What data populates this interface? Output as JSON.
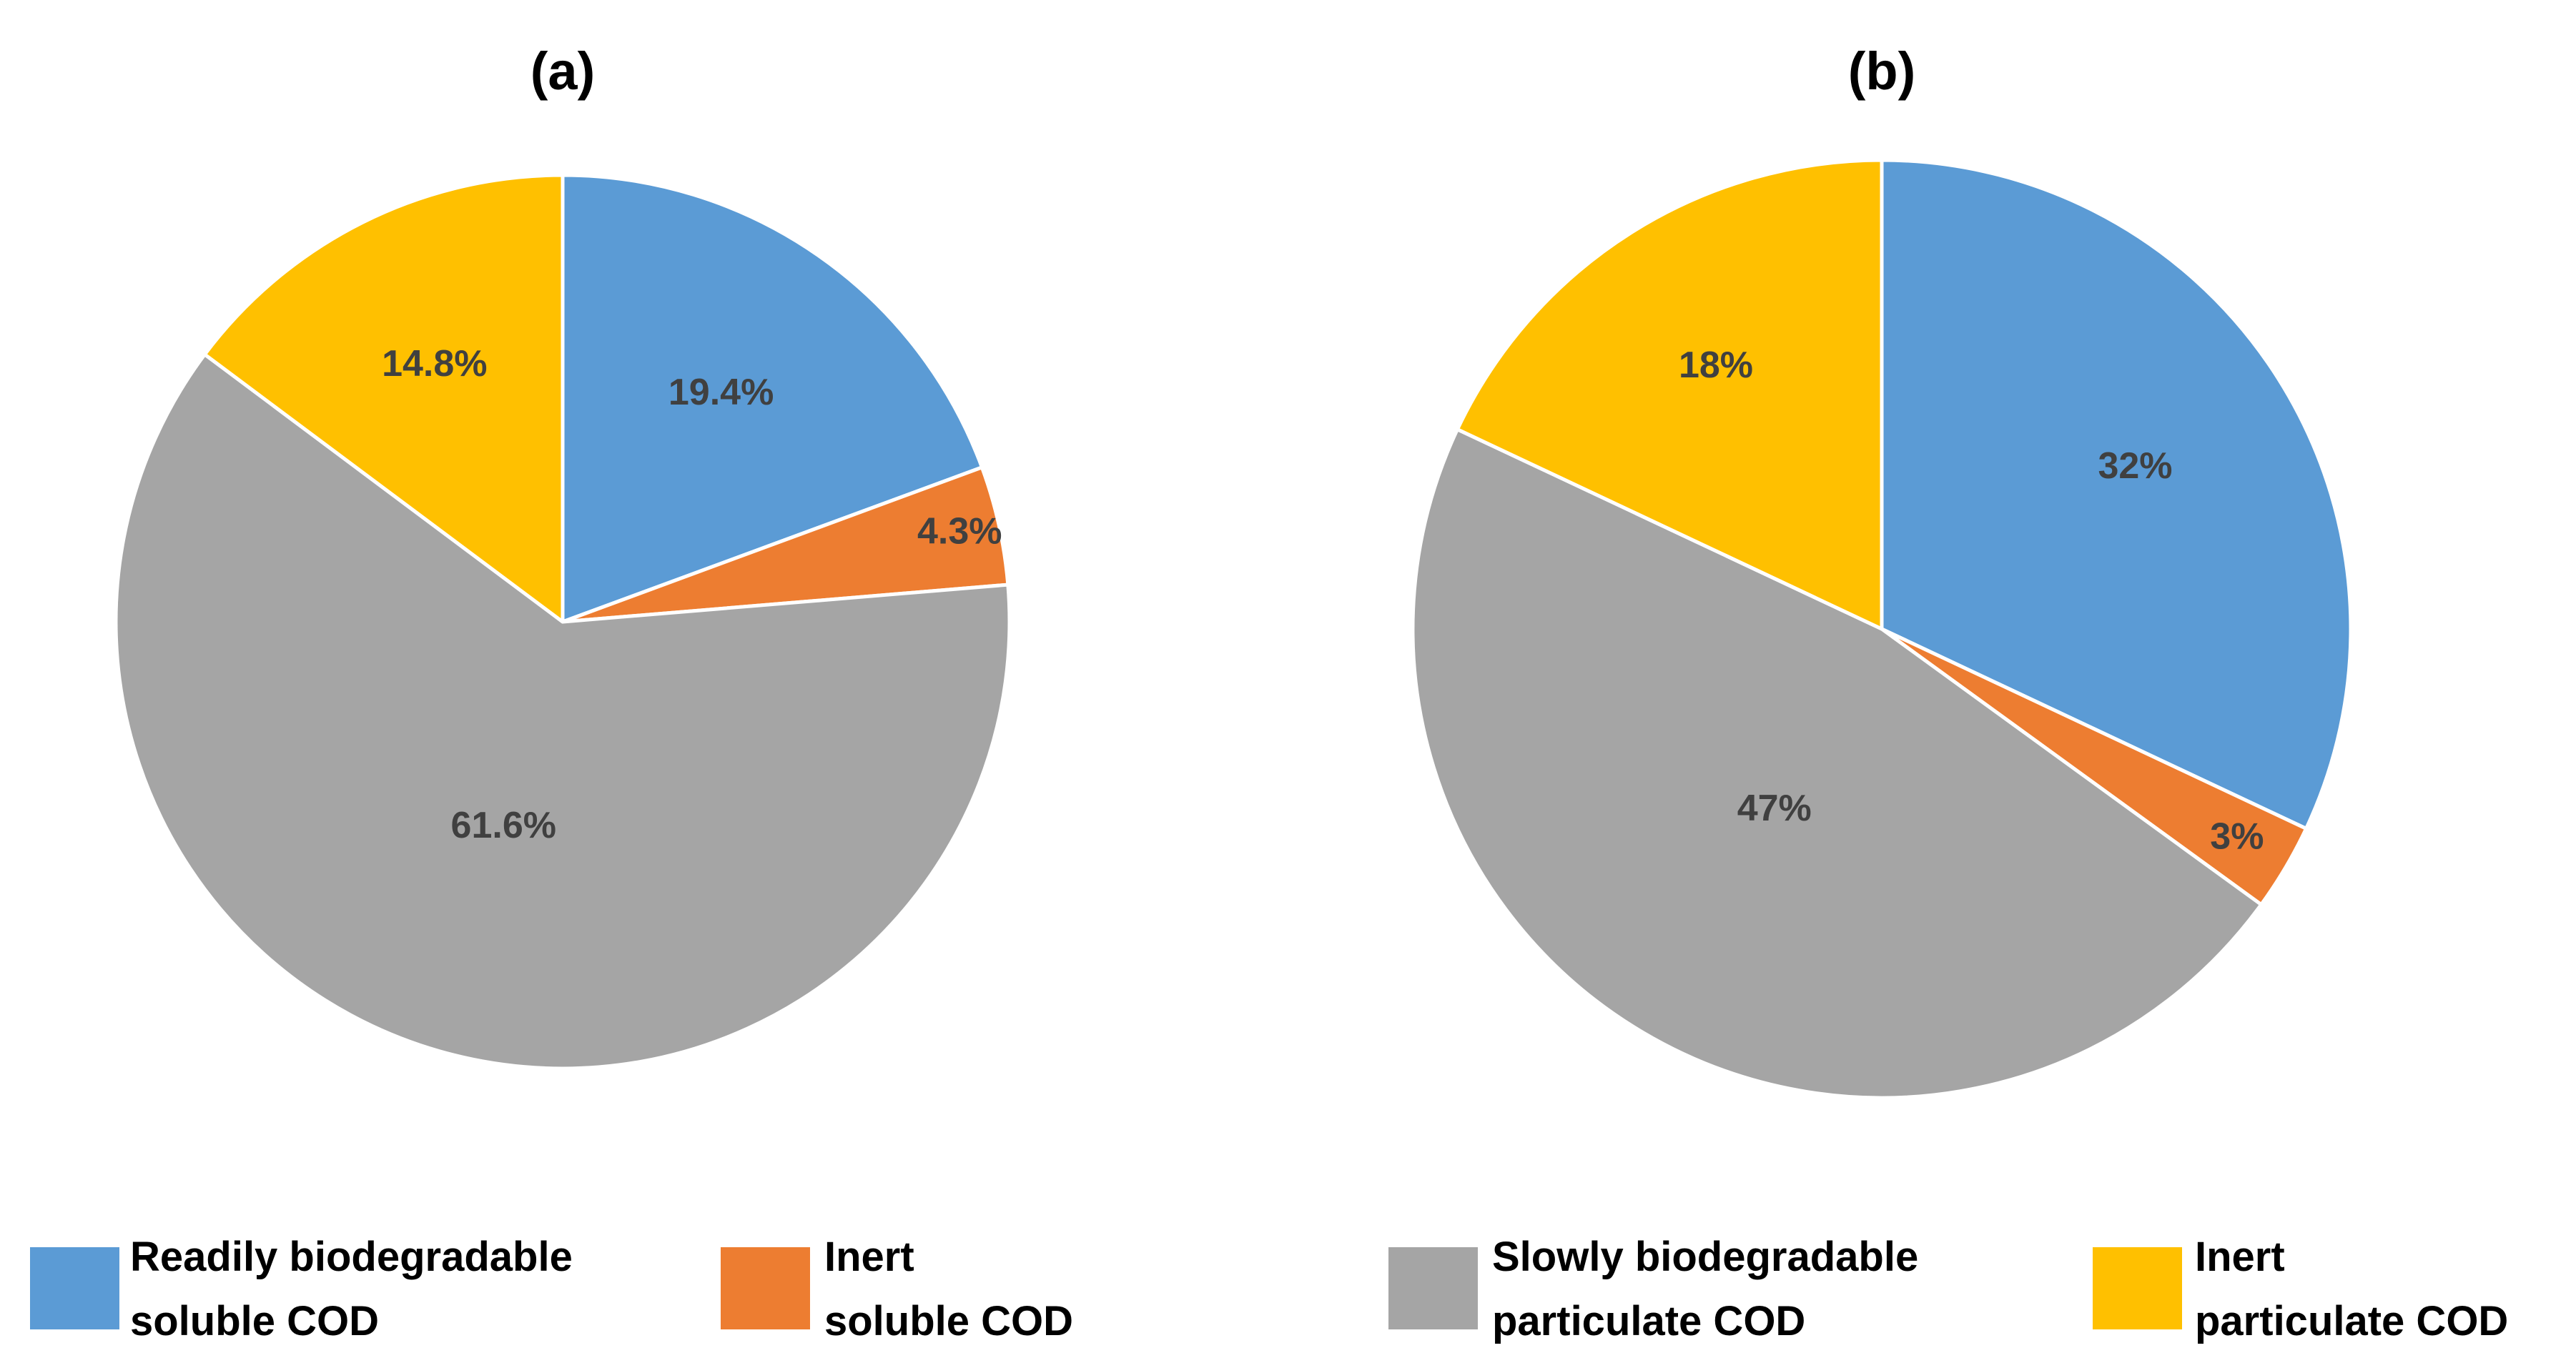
{
  "chart_data": [
    {
      "type": "pie",
      "title": "(a)",
      "slices": [
        {
          "label": "Readily biodegradable soluble COD",
          "value": 19.4,
          "value_label": "19.4%",
          "color": "#5B9BD5"
        },
        {
          "label": "Inert soluble COD",
          "value": 4.3,
          "value_label": "4.3%",
          "color": "#ED7D31"
        },
        {
          "label": "Slowly biodegradable particulate COD",
          "value": 61.6,
          "value_label": "61.6%",
          "color": "#A5A5A5"
        },
        {
          "label": "Inert particulate COD",
          "value": 14.8,
          "value_label": "14.8%",
          "color": "#FFC000"
        }
      ]
    },
    {
      "type": "pie",
      "title": "(b)",
      "slices": [
        {
          "label": "Readily biodegradable soluble COD",
          "value": 32,
          "value_label": "32%",
          "color": "#5B9BD5"
        },
        {
          "label": "Inert soluble COD",
          "value": 3,
          "value_label": "3%",
          "color": "#ED7D31"
        },
        {
          "label": "Slowly biodegradable particulate COD",
          "value": 47,
          "value_label": "47%",
          "color": "#A5A5A5"
        },
        {
          "label": "Inert particulate COD",
          "value": 18,
          "value_label": "18%",
          "color": "#FFC000"
        }
      ]
    }
  ],
  "legend": {
    "position": "bottom",
    "items": [
      {
        "line1": "Readily biodegradable",
        "line2": "soluble COD",
        "color": "#5B9BD5"
      },
      {
        "line1": "Inert",
        "line2": "soluble COD",
        "color": "#ED7D31"
      },
      {
        "line1": "Slowly biodegradable",
        "line2": "particulate COD",
        "color": "#A5A5A5"
      },
      {
        "line1": "Inert",
        "line2": "particulate COD",
        "color": "#FFC000"
      }
    ]
  }
}
